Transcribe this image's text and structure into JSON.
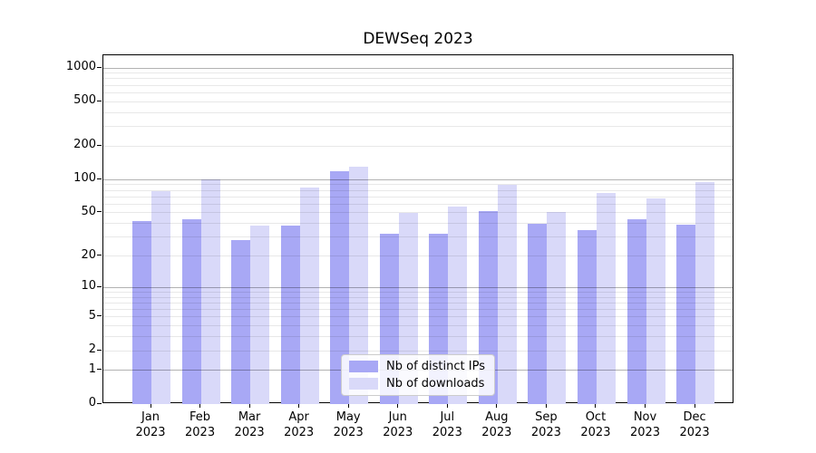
{
  "header": {
    "title": "DEWSeq 2023"
  },
  "chart_data": {
    "type": "bar",
    "title": "DEWSeq 2023",
    "categories": [
      "Jan 2023",
      "Feb 2023",
      "Mar 2023",
      "Apr 2023",
      "May 2023",
      "Jun 2023",
      "Jul 2023",
      "Aug 2023",
      "Sep 2023",
      "Oct 2023",
      "Nov 2023",
      "Dec 2023"
    ],
    "x_months": [
      "Jan",
      "Feb",
      "Mar",
      "Apr",
      "May",
      "Jun",
      "Jul",
      "Aug",
      "Sep",
      "Oct",
      "Nov",
      "Dec"
    ],
    "x_year": "2023",
    "series": [
      {
        "name": "Nb of distinct IPs",
        "color": "#a8a8f5",
        "values": [
          42,
          44,
          28,
          38,
          119,
          32,
          32,
          52,
          40,
          35,
          44,
          39
        ]
      },
      {
        "name": "Nb of downloads",
        "color": "#d9d9f9",
        "values": [
          79,
          100,
          38,
          85,
          130,
          50,
          57,
          90,
          51,
          75,
          67,
          95
        ]
      }
    ],
    "yticks": [
      1000,
      500,
      200,
      100,
      50,
      20,
      10,
      5,
      2,
      1,
      0
    ],
    "yscale": "log-like: y position proportional to log10(value+1), 0 at baseline",
    "ylim": [
      0,
      1300
    ],
    "grid": "horizontal; emphasized lines at 1,10,100,1000; faint minors at 2-9 multiples; drawn over bars",
    "legend_position": "inside-bottom-center"
  },
  "colors": {
    "ips_bar": "#a8a8f5",
    "downloads_bar": "#d9d9f9",
    "major_grid": "#b3b3b3",
    "minor_grid": "#e8e8e8",
    "axis": "#000000",
    "background": "#ffffff"
  }
}
